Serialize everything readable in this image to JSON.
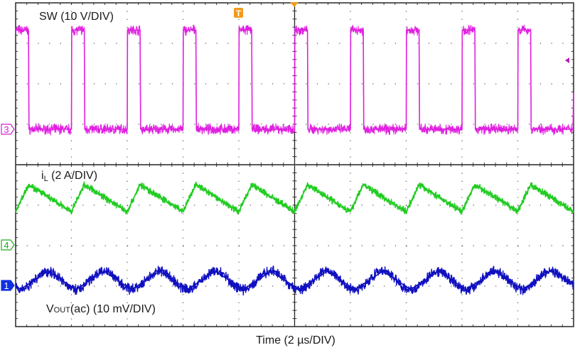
{
  "chart_data": {
    "type": "line",
    "title": "",
    "xlabel": "Time (2 µs/DIV)",
    "x_unit": "µs",
    "xlim": [
      0,
      20
    ],
    "grid": true,
    "divisions": {
      "horizontal": 10,
      "vertical": 8
    },
    "series": [
      {
        "name": "SW (10 V/DIV)",
        "label_main": "SW (10 V/DIV)",
        "channel": "3",
        "unit": "V",
        "scale_per_div": 10,
        "color": "#e020e0",
        "points": [
          [
            0,
            24.5
          ],
          [
            0.46,
            24.5
          ],
          [
            0.48,
            0
          ],
          [
            2,
            0
          ],
          [
            2.01,
            24.5
          ],
          [
            2.46,
            24.5
          ],
          [
            2.48,
            0
          ],
          [
            4,
            0
          ],
          [
            4.01,
            24.5
          ],
          [
            4.46,
            24.5
          ],
          [
            4.48,
            0
          ],
          [
            6,
            0
          ],
          [
            6.01,
            24.5
          ],
          [
            6.46,
            24.5
          ],
          [
            6.48,
            0
          ],
          [
            8,
            0
          ],
          [
            8.01,
            24.5
          ],
          [
            8.46,
            24.5
          ],
          [
            8.48,
            0
          ],
          [
            10,
            0
          ],
          [
            10.01,
            24.5
          ],
          [
            10.46,
            24.5
          ],
          [
            10.48,
            0
          ],
          [
            12,
            0
          ],
          [
            12.01,
            24.5
          ],
          [
            12.46,
            24.5
          ],
          [
            12.48,
            0
          ],
          [
            14,
            0
          ],
          [
            14.01,
            24.5
          ],
          [
            14.46,
            24.5
          ],
          [
            14.48,
            0
          ],
          [
            16,
            0
          ],
          [
            16.01,
            24.5
          ],
          [
            16.46,
            24.5
          ],
          [
            16.48,
            0
          ],
          [
            18,
            0
          ],
          [
            18.01,
            24.5
          ],
          [
            18.46,
            24.5
          ],
          [
            18.48,
            0
          ],
          [
            19.98,
            0
          ],
          [
            20,
            9
          ]
        ]
      },
      {
        "name": "iL (2 A/DIV)",
        "label_main": "i",
        "label_sub": "L",
        "label_rest": " (2 A/DIV)",
        "channel": "4",
        "unit": "A",
        "scale_per_div": 2,
        "color": "#22cc22",
        "points": [
          [
            0,
            1.65
          ],
          [
            0.46,
            2.98
          ],
          [
            2,
            1.65
          ],
          [
            2.46,
            2.98
          ],
          [
            4,
            1.65
          ],
          [
            4.46,
            2.98
          ],
          [
            6,
            1.65
          ],
          [
            6.46,
            2.98
          ],
          [
            8,
            1.65
          ],
          [
            8.46,
            2.98
          ],
          [
            10,
            1.65
          ],
          [
            10.46,
            2.98
          ],
          [
            12,
            1.65
          ],
          [
            12.46,
            2.98
          ],
          [
            14,
            1.65
          ],
          [
            14.46,
            2.98
          ],
          [
            16,
            1.65
          ],
          [
            16.46,
            2.98
          ],
          [
            18,
            1.65
          ],
          [
            18.46,
            2.98
          ],
          [
            20,
            1.65
          ]
        ]
      },
      {
        "name": "VOUT(ac) (10 mV/DIV)",
        "label_main": "V",
        "label_sub": "OUT",
        "label_rest": "(ac) (10 mV/DIV)",
        "channel": "1",
        "unit": "mV",
        "scale_per_div": 10,
        "color": "#1010c0",
        "points": [
          [
            0,
            0.2
          ],
          [
            0.16,
            -1.0
          ],
          [
            1.16,
            3.5
          ],
          [
            2.16,
            -1.0
          ],
          [
            3.16,
            3.5
          ],
          [
            4.16,
            -1.0
          ],
          [
            5.16,
            3.5
          ],
          [
            6.16,
            -1.0
          ],
          [
            7.16,
            3.5
          ],
          [
            8.16,
            -1.0
          ],
          [
            9.16,
            3.5
          ],
          [
            10.16,
            -1.0
          ],
          [
            11.16,
            3.5
          ],
          [
            12.16,
            -1.0
          ],
          [
            13.16,
            3.5
          ],
          [
            14.16,
            -1.0
          ],
          [
            15.16,
            3.5
          ],
          [
            16.16,
            -1.0
          ],
          [
            17.16,
            3.5
          ],
          [
            18.16,
            -1.0
          ],
          [
            19.16,
            3.5
          ],
          [
            20,
            0.5
          ]
        ]
      }
    ],
    "trigger": {
      "marker": "T",
      "color": "#f39a1a",
      "level_arrow_color": "#b020b0"
    }
  }
}
